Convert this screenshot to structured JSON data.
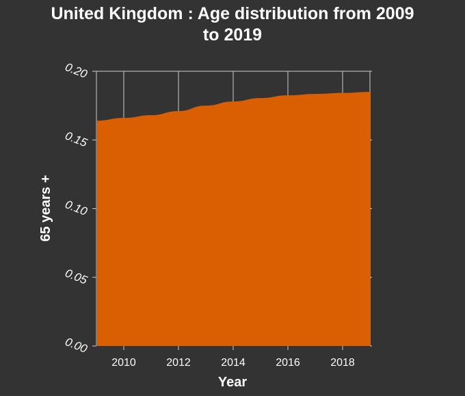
{
  "chart_data": {
    "type": "area",
    "title_lines": [
      "United Kingdom : Age distribution from 2009",
      "to 2019"
    ],
    "xlabel": "Year",
    "ylabel": "65 years +",
    "xlim": [
      2009,
      2019
    ],
    "ylim": [
      0,
      0.2
    ],
    "x_ticks": [
      2010,
      2012,
      2014,
      2016,
      2018
    ],
    "x_tick_labels": [
      "2010",
      "2012",
      "2014",
      "2016",
      "2018"
    ],
    "y_ticks": [
      0,
      0.05,
      0.1,
      0.15,
      0.2
    ],
    "y_tick_labels": [
      "0.00",
      "0.05",
      "0.10",
      "0.15",
      "0.20"
    ],
    "grid": true,
    "series": [
      {
        "name": "65 years +",
        "x": [
          2009,
          2010,
          2011,
          2012,
          2013,
          2014,
          2015,
          2016,
          2017,
          2018,
          2019
        ],
        "values": [
          0.164,
          0.166,
          0.168,
          0.171,
          0.175,
          0.178,
          0.1805,
          0.1825,
          0.1835,
          0.1842,
          0.185
        ]
      }
    ]
  },
  "colors": {
    "background": "#333333",
    "plot_background": "#333333",
    "area_fill": "#d95f02",
    "grid": "#cccccc",
    "text": "#ffffff"
  }
}
